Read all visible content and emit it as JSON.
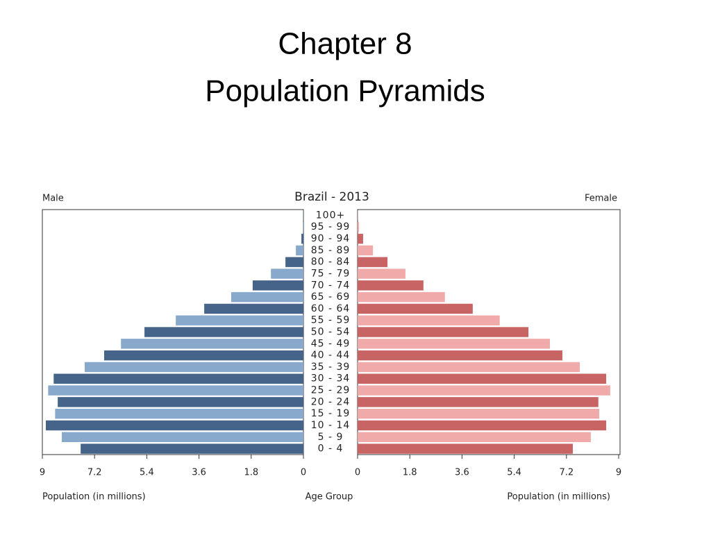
{
  "slide_title": [
    "Chapter 8",
    "Population Pyramids"
  ],
  "chart_data": {
    "type": "pyramid",
    "title": "Brazil - 2013",
    "categories": [
      "0 - 4",
      "5 - 9",
      "10 - 14",
      "15 - 19",
      "20 - 24",
      "25 - 29",
      "30 - 34",
      "35 - 39",
      "40 - 44",
      "45 - 49",
      "50 - 54",
      "55 - 59",
      "60 - 64",
      "65 - 69",
      "70 - 74",
      "75 - 79",
      "80 - 84",
      "85 - 89",
      "90 - 94",
      "95 - 99",
      "100+"
    ],
    "series": [
      {
        "name": "Male",
        "colors": [
          "#46648a",
          "#88a8cc"
        ],
        "values": [
          7.68,
          8.33,
          8.88,
          8.56,
          8.47,
          8.8,
          8.61,
          7.54,
          6.87,
          6.29,
          5.48,
          4.4,
          3.42,
          2.49,
          1.75,
          1.12,
          0.62,
          0.26,
          0.07,
          0.02,
          0.01
        ]
      },
      {
        "name": "Female",
        "colors": [
          "#c86464",
          "#f0aaaa"
        ],
        "values": [
          7.42,
          8.04,
          8.57,
          8.33,
          8.3,
          8.71,
          8.57,
          7.66,
          7.06,
          6.63,
          5.89,
          4.9,
          3.97,
          3.01,
          2.27,
          1.65,
          1.03,
          0.53,
          0.19,
          0.05,
          0.01
        ]
      }
    ],
    "xlim": [
      0,
      9
    ],
    "xticks": [
      0,
      1.8,
      3.6,
      5.4,
      7.2,
      9
    ],
    "xlabel": "Population (in millions)",
    "category_label": "Age Group"
  }
}
